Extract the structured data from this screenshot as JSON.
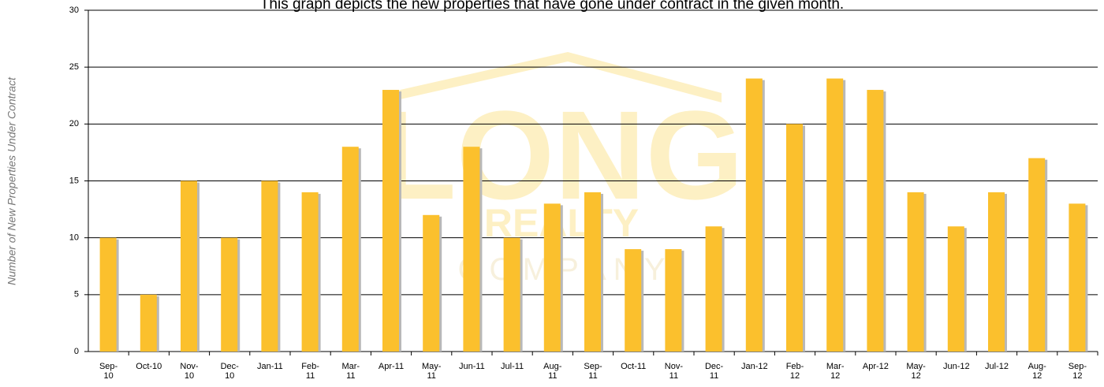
{
  "chart_data": {
    "type": "bar",
    "title": "This graph depicts the new properties that have gone under contract in the given month.",
    "y_label": "Number of New Properties Under Contract",
    "watermark": [
      "LONG",
      "REALTY",
      "C O M P A N Y"
    ],
    "categories": [
      "Sep-10",
      "Oct-10",
      "Nov-10",
      "Dec-10",
      "Jan-11",
      "Feb-11",
      "Mar-11",
      "Apr-11",
      "May-11",
      "Jun-11",
      "Jul-11",
      "Aug-11",
      "Sep-11",
      "Oct-11",
      "Nov-11",
      "Dec-11",
      "Jan-12",
      "Feb-12",
      "Mar-12",
      "Apr-12",
      "May-12",
      "Jun-12",
      "Jul-12",
      "Aug-12",
      "Sep-12"
    ],
    "values": [
      10,
      5,
      15,
      10,
      15,
      14,
      18,
      23,
      12,
      18,
      10,
      13,
      14,
      9,
      9,
      11,
      24,
      20,
      24,
      23,
      14,
      11,
      14,
      17,
      13
    ],
    "color": "#fbc02d",
    "shadow_color": "#b8b8b8",
    "ylim": [
      0,
      30
    ],
    "yticks": [
      0,
      5,
      10,
      15,
      20,
      25,
      30
    ],
    "grid": true
  }
}
